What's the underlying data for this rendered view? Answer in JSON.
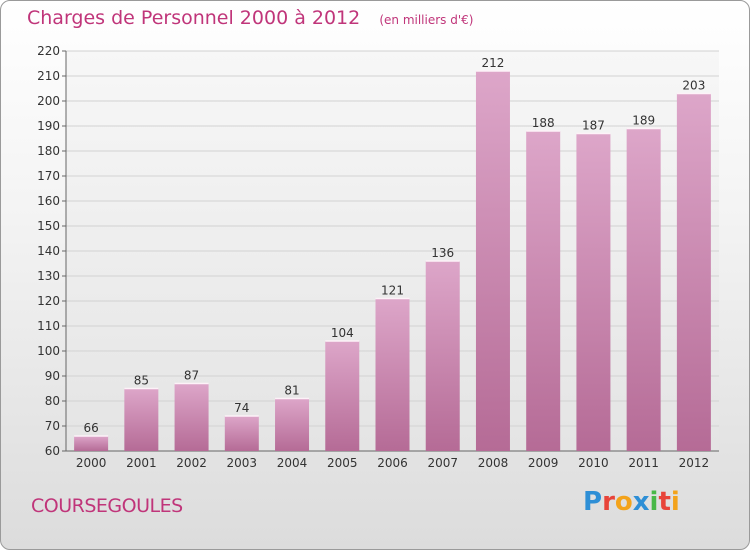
{
  "header": {
    "title": "Charges de Personnel 2000 à 2012",
    "subtitle": "(en milliers d'€)"
  },
  "footer": {
    "town": "COURSEGOULES",
    "logo_letters": [
      "P",
      "r",
      "o",
      "x",
      "i",
      "t",
      "i"
    ]
  },
  "colors": {
    "accent": "#c0357a",
    "bar_top": "#dda6c9",
    "bar_bottom": "#b56b96"
  },
  "chart_data": {
    "type": "bar",
    "title": "Charges de Personnel 2000 à 2012",
    "subtitle": "(en milliers d'€)",
    "categories": [
      "2000",
      "2001",
      "2002",
      "2003",
      "2004",
      "2005",
      "2006",
      "2007",
      "2008",
      "2009",
      "2010",
      "2011",
      "2012"
    ],
    "values": [
      66,
      85,
      87,
      74,
      81,
      104,
      121,
      136,
      212,
      188,
      187,
      189,
      203
    ],
    "ylim": [
      60,
      220
    ],
    "yticks": [
      60,
      70,
      80,
      90,
      100,
      110,
      120,
      130,
      140,
      150,
      160,
      170,
      180,
      190,
      200,
      210,
      220
    ],
    "grid": true,
    "xlabel": "",
    "ylabel": ""
  }
}
